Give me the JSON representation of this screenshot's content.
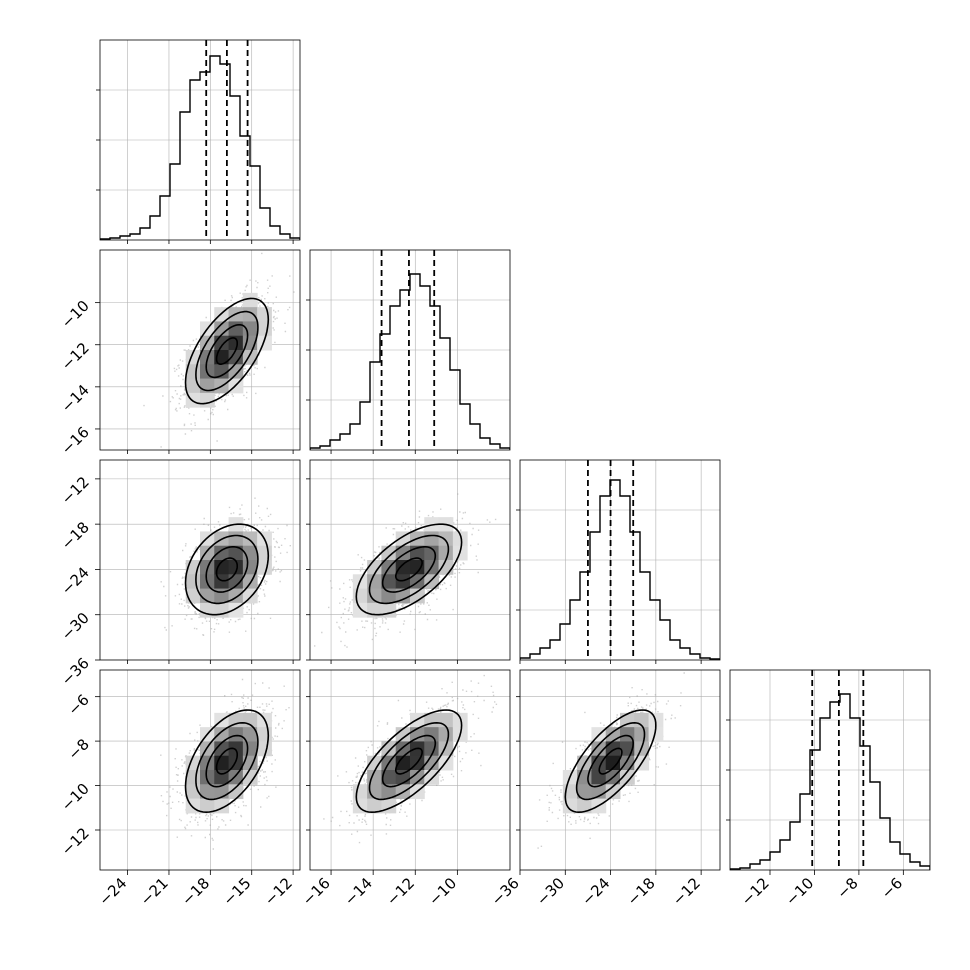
{
  "chart_data": {
    "type": "corner",
    "title": "",
    "params": [
      {
        "range": [
          -26,
          -11.5
        ],
        "ticks": [
          -24,
          -21,
          -18,
          -15,
          -12
        ],
        "tick_labels": [
          "−24",
          "−21",
          "−18",
          "−15",
          "−12"
        ],
        "quantiles": [
          -18.3,
          -16.8,
          -15.3
        ],
        "hist_peak": 0.92,
        "axis_label": ""
      },
      {
        "range": [
          -17,
          -7.5
        ],
        "ticks": [
          -16,
          -14,
          -12,
          -10
        ],
        "tick_labels": [
          "−16",
          "−14",
          "−12",
          "−10"
        ],
        "quantiles": [
          -13.6,
          -12.3,
          -11.1
        ],
        "hist_peak": 0.88,
        "axis_label": ""
      },
      {
        "range": [
          -36,
          -9.5
        ],
        "ticks": [
          -36,
          -30,
          -24,
          -18,
          -12
        ],
        "tick_labels": [
          "−36",
          "−30",
          "−24",
          "−18",
          "−12"
        ],
        "quantiles": [
          -27.0,
          -24.0,
          -21.0
        ],
        "hist_peak": 0.9,
        "axis_label": ""
      },
      {
        "range": [
          -13.8,
          -4.8
        ],
        "ticks": [
          -12,
          -10,
          -8,
          -6
        ],
        "tick_labels": [
          "−12",
          "−10",
          "−8",
          "−6"
        ],
        "quantiles": [
          -10.1,
          -8.9,
          -7.8
        ],
        "hist_peak": 0.88,
        "axis_label": ""
      }
    ],
    "histograms": [
      [
        0.005,
        0.01,
        0.02,
        0.03,
        0.06,
        0.12,
        0.22,
        0.38,
        0.64,
        0.8,
        0.84,
        0.92,
        0.88,
        0.72,
        0.52,
        0.37,
        0.16,
        0.07,
        0.03,
        0.01
      ],
      [
        0.01,
        0.02,
        0.05,
        0.08,
        0.13,
        0.24,
        0.44,
        0.58,
        0.72,
        0.8,
        0.88,
        0.82,
        0.72,
        0.56,
        0.4,
        0.23,
        0.13,
        0.06,
        0.03,
        0.01
      ],
      [
        0.01,
        0.03,
        0.06,
        0.1,
        0.18,
        0.3,
        0.44,
        0.64,
        0.82,
        0.9,
        0.82,
        0.64,
        0.44,
        0.3,
        0.2,
        0.1,
        0.06,
        0.03,
        0.01,
        0.005
      ],
      [
        0.005,
        0.01,
        0.03,
        0.05,
        0.09,
        0.15,
        0.24,
        0.38,
        0.6,
        0.76,
        0.84,
        0.88,
        0.76,
        0.62,
        0.44,
        0.26,
        0.14,
        0.08,
        0.04,
        0.02
      ]
    ],
    "pairs": [
      {
        "x": 0,
        "y": 1,
        "mean": [
          -16.8,
          -12.3
        ],
        "sd": [
          1.5,
          1.25
        ],
        "rho": 0.6
      },
      {
        "x": 0,
        "y": 2,
        "mean": [
          -16.8,
          -24.0
        ],
        "sd": [
          1.5,
          3.0
        ],
        "rho": 0.3
      },
      {
        "x": 1,
        "y": 2,
        "mean": [
          -12.3,
          -24.0
        ],
        "sd": [
          1.25,
          3.0
        ],
        "rho": 0.6
      },
      {
        "x": 0,
        "y": 3,
        "mean": [
          -16.8,
          -8.9
        ],
        "sd": [
          1.5,
          1.15
        ],
        "rho": 0.5
      },
      {
        "x": 1,
        "y": 3,
        "mean": [
          -12.3,
          -8.9
        ],
        "sd": [
          1.25,
          1.15
        ],
        "rho": 0.7
      },
      {
        "x": 2,
        "y": 3,
        "mean": [
          -24.0,
          -8.9
        ],
        "sd": [
          3.0,
          1.15
        ],
        "rho": 0.7
      }
    ],
    "contour_levels": [
      0.5,
      1.0,
      1.5,
      2.0
    ],
    "grid": true,
    "colors": {
      "line": "#000000",
      "scatter": "#aaaaaa",
      "grid": "#b0b0b0"
    }
  }
}
